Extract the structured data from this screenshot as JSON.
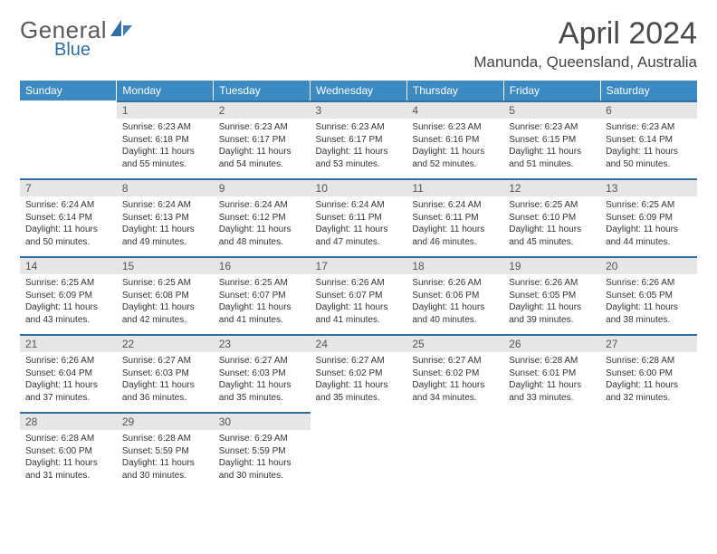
{
  "brand": {
    "name": "General",
    "accent": "Blue"
  },
  "colors": {
    "header_bg": "#3b8ac4",
    "header_text": "#ffffff",
    "daynum_bg": "#e6e6e6",
    "daynum_border": "#2f6fa3",
    "body_text": "#333333",
    "title_text": "#4a4a4a",
    "logo_gray": "#5a5a5a",
    "logo_blue": "#2f6fa3"
  },
  "title": "April 2024",
  "location": "Manunda, Queensland, Australia",
  "weekdays": [
    "Sunday",
    "Monday",
    "Tuesday",
    "Wednesday",
    "Thursday",
    "Friday",
    "Saturday"
  ],
  "start_weekday": 1,
  "days": [
    {
      "n": 1,
      "sunrise": "6:23 AM",
      "sunset": "6:18 PM",
      "daylight": "11 hours and 55 minutes."
    },
    {
      "n": 2,
      "sunrise": "6:23 AM",
      "sunset": "6:17 PM",
      "daylight": "11 hours and 54 minutes."
    },
    {
      "n": 3,
      "sunrise": "6:23 AM",
      "sunset": "6:17 PM",
      "daylight": "11 hours and 53 minutes."
    },
    {
      "n": 4,
      "sunrise": "6:23 AM",
      "sunset": "6:16 PM",
      "daylight": "11 hours and 52 minutes."
    },
    {
      "n": 5,
      "sunrise": "6:23 AM",
      "sunset": "6:15 PM",
      "daylight": "11 hours and 51 minutes."
    },
    {
      "n": 6,
      "sunrise": "6:23 AM",
      "sunset": "6:14 PM",
      "daylight": "11 hours and 50 minutes."
    },
    {
      "n": 7,
      "sunrise": "6:24 AM",
      "sunset": "6:14 PM",
      "daylight": "11 hours and 50 minutes."
    },
    {
      "n": 8,
      "sunrise": "6:24 AM",
      "sunset": "6:13 PM",
      "daylight": "11 hours and 49 minutes."
    },
    {
      "n": 9,
      "sunrise": "6:24 AM",
      "sunset": "6:12 PM",
      "daylight": "11 hours and 48 minutes."
    },
    {
      "n": 10,
      "sunrise": "6:24 AM",
      "sunset": "6:11 PM",
      "daylight": "11 hours and 47 minutes."
    },
    {
      "n": 11,
      "sunrise": "6:24 AM",
      "sunset": "6:11 PM",
      "daylight": "11 hours and 46 minutes."
    },
    {
      "n": 12,
      "sunrise": "6:25 AM",
      "sunset": "6:10 PM",
      "daylight": "11 hours and 45 minutes."
    },
    {
      "n": 13,
      "sunrise": "6:25 AM",
      "sunset": "6:09 PM",
      "daylight": "11 hours and 44 minutes."
    },
    {
      "n": 14,
      "sunrise": "6:25 AM",
      "sunset": "6:09 PM",
      "daylight": "11 hours and 43 minutes."
    },
    {
      "n": 15,
      "sunrise": "6:25 AM",
      "sunset": "6:08 PM",
      "daylight": "11 hours and 42 minutes."
    },
    {
      "n": 16,
      "sunrise": "6:25 AM",
      "sunset": "6:07 PM",
      "daylight": "11 hours and 41 minutes."
    },
    {
      "n": 17,
      "sunrise": "6:26 AM",
      "sunset": "6:07 PM",
      "daylight": "11 hours and 41 minutes."
    },
    {
      "n": 18,
      "sunrise": "6:26 AM",
      "sunset": "6:06 PM",
      "daylight": "11 hours and 40 minutes."
    },
    {
      "n": 19,
      "sunrise": "6:26 AM",
      "sunset": "6:05 PM",
      "daylight": "11 hours and 39 minutes."
    },
    {
      "n": 20,
      "sunrise": "6:26 AM",
      "sunset": "6:05 PM",
      "daylight": "11 hours and 38 minutes."
    },
    {
      "n": 21,
      "sunrise": "6:26 AM",
      "sunset": "6:04 PM",
      "daylight": "11 hours and 37 minutes."
    },
    {
      "n": 22,
      "sunrise": "6:27 AM",
      "sunset": "6:03 PM",
      "daylight": "11 hours and 36 minutes."
    },
    {
      "n": 23,
      "sunrise": "6:27 AM",
      "sunset": "6:03 PM",
      "daylight": "11 hours and 35 minutes."
    },
    {
      "n": 24,
      "sunrise": "6:27 AM",
      "sunset": "6:02 PM",
      "daylight": "11 hours and 35 minutes."
    },
    {
      "n": 25,
      "sunrise": "6:27 AM",
      "sunset": "6:02 PM",
      "daylight": "11 hours and 34 minutes."
    },
    {
      "n": 26,
      "sunrise": "6:28 AM",
      "sunset": "6:01 PM",
      "daylight": "11 hours and 33 minutes."
    },
    {
      "n": 27,
      "sunrise": "6:28 AM",
      "sunset": "6:00 PM",
      "daylight": "11 hours and 32 minutes."
    },
    {
      "n": 28,
      "sunrise": "6:28 AM",
      "sunset": "6:00 PM",
      "daylight": "11 hours and 31 minutes."
    },
    {
      "n": 29,
      "sunrise": "6:28 AM",
      "sunset": "5:59 PM",
      "daylight": "11 hours and 30 minutes."
    },
    {
      "n": 30,
      "sunrise": "6:29 AM",
      "sunset": "5:59 PM",
      "daylight": "11 hours and 30 minutes."
    }
  ],
  "labels": {
    "sunrise": "Sunrise:",
    "sunset": "Sunset:",
    "daylight": "Daylight:"
  }
}
